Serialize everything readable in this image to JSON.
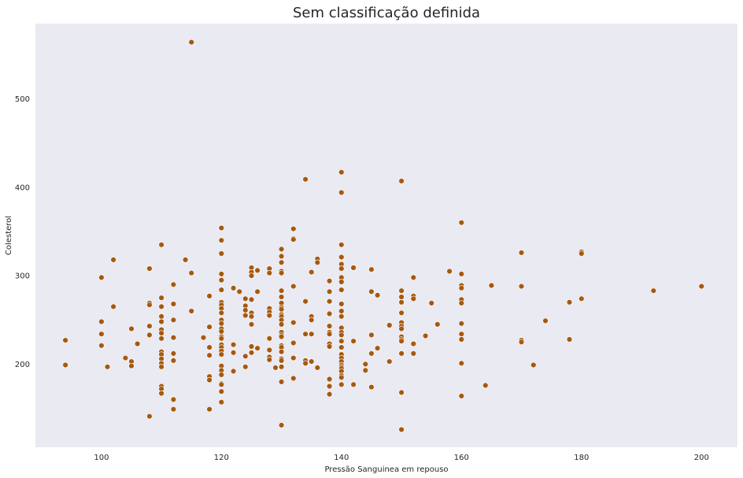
{
  "chart_data": {
    "type": "scatter",
    "title": "Sem classificação definida",
    "xlabel": "Pressão Sanguinea em repouso",
    "ylabel": "Colesterol",
    "xlim": [
      89,
      206
    ],
    "ylim": [
      106,
      585
    ],
    "xticks": [
      100,
      120,
      140,
      160,
      180,
      200
    ],
    "yticks": [
      200,
      300,
      400,
      500
    ],
    "grid": false,
    "background": "#eaeaf2",
    "marker_color": "#a6590f",
    "marker_edge": "#ffffff",
    "points": [
      [
        94,
        227
      ],
      [
        94,
        199
      ],
      [
        100,
        298
      ],
      [
        100,
        248
      ],
      [
        100,
        234
      ],
      [
        100,
        221
      ],
      [
        101,
        197
      ],
      [
        102,
        318
      ],
      [
        102,
        265
      ],
      [
        104,
        207
      ],
      [
        105,
        240
      ],
      [
        105,
        203
      ],
      [
        105,
        198
      ],
      [
        106,
        223
      ],
      [
        108,
        308
      ],
      [
        108,
        269
      ],
      [
        108,
        267
      ],
      [
        108,
        243
      ],
      [
        108,
        233
      ],
      [
        108,
        141
      ],
      [
        110,
        335
      ],
      [
        110,
        275
      ],
      [
        110,
        265
      ],
      [
        110,
        254
      ],
      [
        110,
        248
      ],
      [
        110,
        239
      ],
      [
        110,
        235
      ],
      [
        110,
        229
      ],
      [
        110,
        214
      ],
      [
        110,
        211
      ],
      [
        110,
        206
      ],
      [
        110,
        201
      ],
      [
        110,
        197
      ],
      [
        110,
        175
      ],
      [
        110,
        172
      ],
      [
        110,
        167
      ],
      [
        112,
        290
      ],
      [
        112,
        268
      ],
      [
        112,
        250
      ],
      [
        112,
        230
      ],
      [
        112,
        212
      ],
      [
        112,
        204
      ],
      [
        112,
        160
      ],
      [
        112,
        149
      ],
      [
        114,
        318
      ],
      [
        115,
        564
      ],
      [
        115,
        303
      ],
      [
        115,
        260
      ],
      [
        117,
        230
      ],
      [
        118,
        277
      ],
      [
        118,
        242
      ],
      [
        118,
        219
      ],
      [
        118,
        210
      ],
      [
        118,
        186
      ],
      [
        118,
        182
      ],
      [
        118,
        149
      ],
      [
        120,
        354
      ],
      [
        120,
        340
      ],
      [
        120,
        325
      ],
      [
        120,
        302
      ],
      [
        120,
        295
      ],
      [
        120,
        284
      ],
      [
        120,
        270
      ],
      [
        120,
        267
      ],
      [
        120,
        263
      ],
      [
        120,
        258
      ],
      [
        120,
        250
      ],
      [
        120,
        246
      ],
      [
        120,
        240
      ],
      [
        120,
        237
      ],
      [
        120,
        231
      ],
      [
        120,
        229
      ],
      [
        120,
        222
      ],
      [
        120,
        219
      ],
      [
        120,
        215
      ],
      [
        120,
        211
      ],
      [
        120,
        198
      ],
      [
        120,
        193
      ],
      [
        120,
        188
      ],
      [
        120,
        178
      ],
      [
        120,
        177
      ],
      [
        120,
        169
      ],
      [
        120,
        157
      ],
      [
        122,
        286
      ],
      [
        122,
        222
      ],
      [
        122,
        213
      ],
      [
        122,
        192
      ],
      [
        123,
        282
      ],
      [
        124,
        274
      ],
      [
        124,
        266
      ],
      [
        124,
        261
      ],
      [
        124,
        255
      ],
      [
        124,
        209
      ],
      [
        124,
        197
      ],
      [
        125,
        309
      ],
      [
        125,
        304
      ],
      [
        125,
        300
      ],
      [
        125,
        273
      ],
      [
        125,
        258
      ],
      [
        125,
        254
      ],
      [
        125,
        245
      ],
      [
        125,
        220
      ],
      [
        125,
        213
      ],
      [
        126,
        306
      ],
      [
        126,
        282
      ],
      [
        126,
        218
      ],
      [
        128,
        308
      ],
      [
        128,
        303
      ],
      [
        128,
        263
      ],
      [
        128,
        259
      ],
      [
        128,
        255
      ],
      [
        128,
        229
      ],
      [
        128,
        216
      ],
      [
        128,
        208
      ],
      [
        128,
        205
      ],
      [
        129,
        196
      ],
      [
        130,
        330
      ],
      [
        130,
        322
      ],
      [
        130,
        315
      ],
      [
        130,
        305
      ],
      [
        130,
        303
      ],
      [
        130,
        283
      ],
      [
        130,
        276
      ],
      [
        130,
        269
      ],
      [
        130,
        264
      ],
      [
        130,
        262
      ],
      [
        130,
        256
      ],
      [
        130,
        254
      ],
      [
        130,
        250
      ],
      [
        130,
        245
      ],
      [
        130,
        236
      ],
      [
        130,
        233
      ],
      [
        130,
        231
      ],
      [
        130,
        221
      ],
      [
        130,
        219
      ],
      [
        130,
        214
      ],
      [
        130,
        206
      ],
      [
        130,
        204
      ],
      [
        130,
        197
      ],
      [
        130,
        180
      ],
      [
        130,
        131
      ],
      [
        132,
        353
      ],
      [
        132,
        342
      ],
      [
        132,
        341
      ],
      [
        132,
        288
      ],
      [
        132,
        247
      ],
      [
        132,
        224
      ],
      [
        132,
        207
      ],
      [
        132,
        184
      ],
      [
        134,
        409
      ],
      [
        134,
        271
      ],
      [
        134,
        234
      ],
      [
        134,
        204
      ],
      [
        134,
        201
      ],
      [
        135,
        304
      ],
      [
        135,
        254
      ],
      [
        135,
        250
      ],
      [
        135,
        234
      ],
      [
        135,
        203
      ],
      [
        136,
        319
      ],
      [
        136,
        315
      ],
      [
        136,
        196
      ],
      [
        138,
        294
      ],
      [
        138,
        282
      ],
      [
        138,
        271
      ],
      [
        138,
        257
      ],
      [
        138,
        243
      ],
      [
        138,
        236
      ],
      [
        138,
        234
      ],
      [
        138,
        223
      ],
      [
        138,
        220
      ],
      [
        138,
        183
      ],
      [
        138,
        175
      ],
      [
        138,
        166
      ],
      [
        140,
        417
      ],
      [
        140,
        394
      ],
      [
        140,
        335
      ],
      [
        140,
        321
      ],
      [
        140,
        313
      ],
      [
        140,
        308
      ],
      [
        140,
        298
      ],
      [
        140,
        293
      ],
      [
        140,
        284
      ],
      [
        140,
        268
      ],
      [
        140,
        260
      ],
      [
        140,
        254
      ],
      [
        140,
        241
      ],
      [
        140,
        236
      ],
      [
        140,
        233
      ],
      [
        140,
        226
      ],
      [
        140,
        219
      ],
      [
        140,
        211
      ],
      [
        140,
        207
      ],
      [
        140,
        203
      ],
      [
        140,
        199
      ],
      [
        140,
        197
      ],
      [
        140,
        195
      ],
      [
        140,
        192
      ],
      [
        140,
        187
      ],
      [
        140,
        185
      ],
      [
        140,
        177
      ],
      [
        142,
        309
      ],
      [
        142,
        226
      ],
      [
        142,
        177
      ],
      [
        144,
        200
      ],
      [
        144,
        193
      ],
      [
        145,
        307
      ],
      [
        145,
        282
      ],
      [
        145,
        233
      ],
      [
        145,
        212
      ],
      [
        145,
        174
      ],
      [
        146,
        278
      ],
      [
        146,
        218
      ],
      [
        148,
        244
      ],
      [
        148,
        203
      ],
      [
        150,
        407
      ],
      [
        150,
        283
      ],
      [
        150,
        276
      ],
      [
        150,
        270
      ],
      [
        150,
        258
      ],
      [
        150,
        247
      ],
      [
        150,
        243
      ],
      [
        150,
        240
      ],
      [
        150,
        231
      ],
      [
        150,
        228
      ],
      [
        150,
        226
      ],
      [
        150,
        212
      ],
      [
        150,
        168
      ],
      [
        150,
        126
      ],
      [
        152,
        298
      ],
      [
        152,
        277
      ],
      [
        152,
        274
      ],
      [
        152,
        223
      ],
      [
        152,
        212
      ],
      [
        154,
        232
      ],
      [
        155,
        269
      ],
      [
        156,
        245
      ],
      [
        158,
        305
      ],
      [
        160,
        360
      ],
      [
        160,
        302
      ],
      [
        160,
        289
      ],
      [
        160,
        286
      ],
      [
        160,
        273
      ],
      [
        160,
        269
      ],
      [
        160,
        246
      ],
      [
        160,
        234
      ],
      [
        160,
        228
      ],
      [
        160,
        201
      ],
      [
        160,
        164
      ],
      [
        164,
        176
      ],
      [
        165,
        289
      ],
      [
        170,
        326
      ],
      [
        170,
        288
      ],
      [
        170,
        227
      ],
      [
        170,
        225
      ],
      [
        172,
        199
      ],
      [
        174,
        249
      ],
      [
        178,
        270
      ],
      [
        178,
        228
      ],
      [
        180,
        327
      ],
      [
        180,
        325
      ],
      [
        180,
        274
      ],
      [
        192,
        283
      ],
      [
        200,
        288
      ]
    ]
  }
}
